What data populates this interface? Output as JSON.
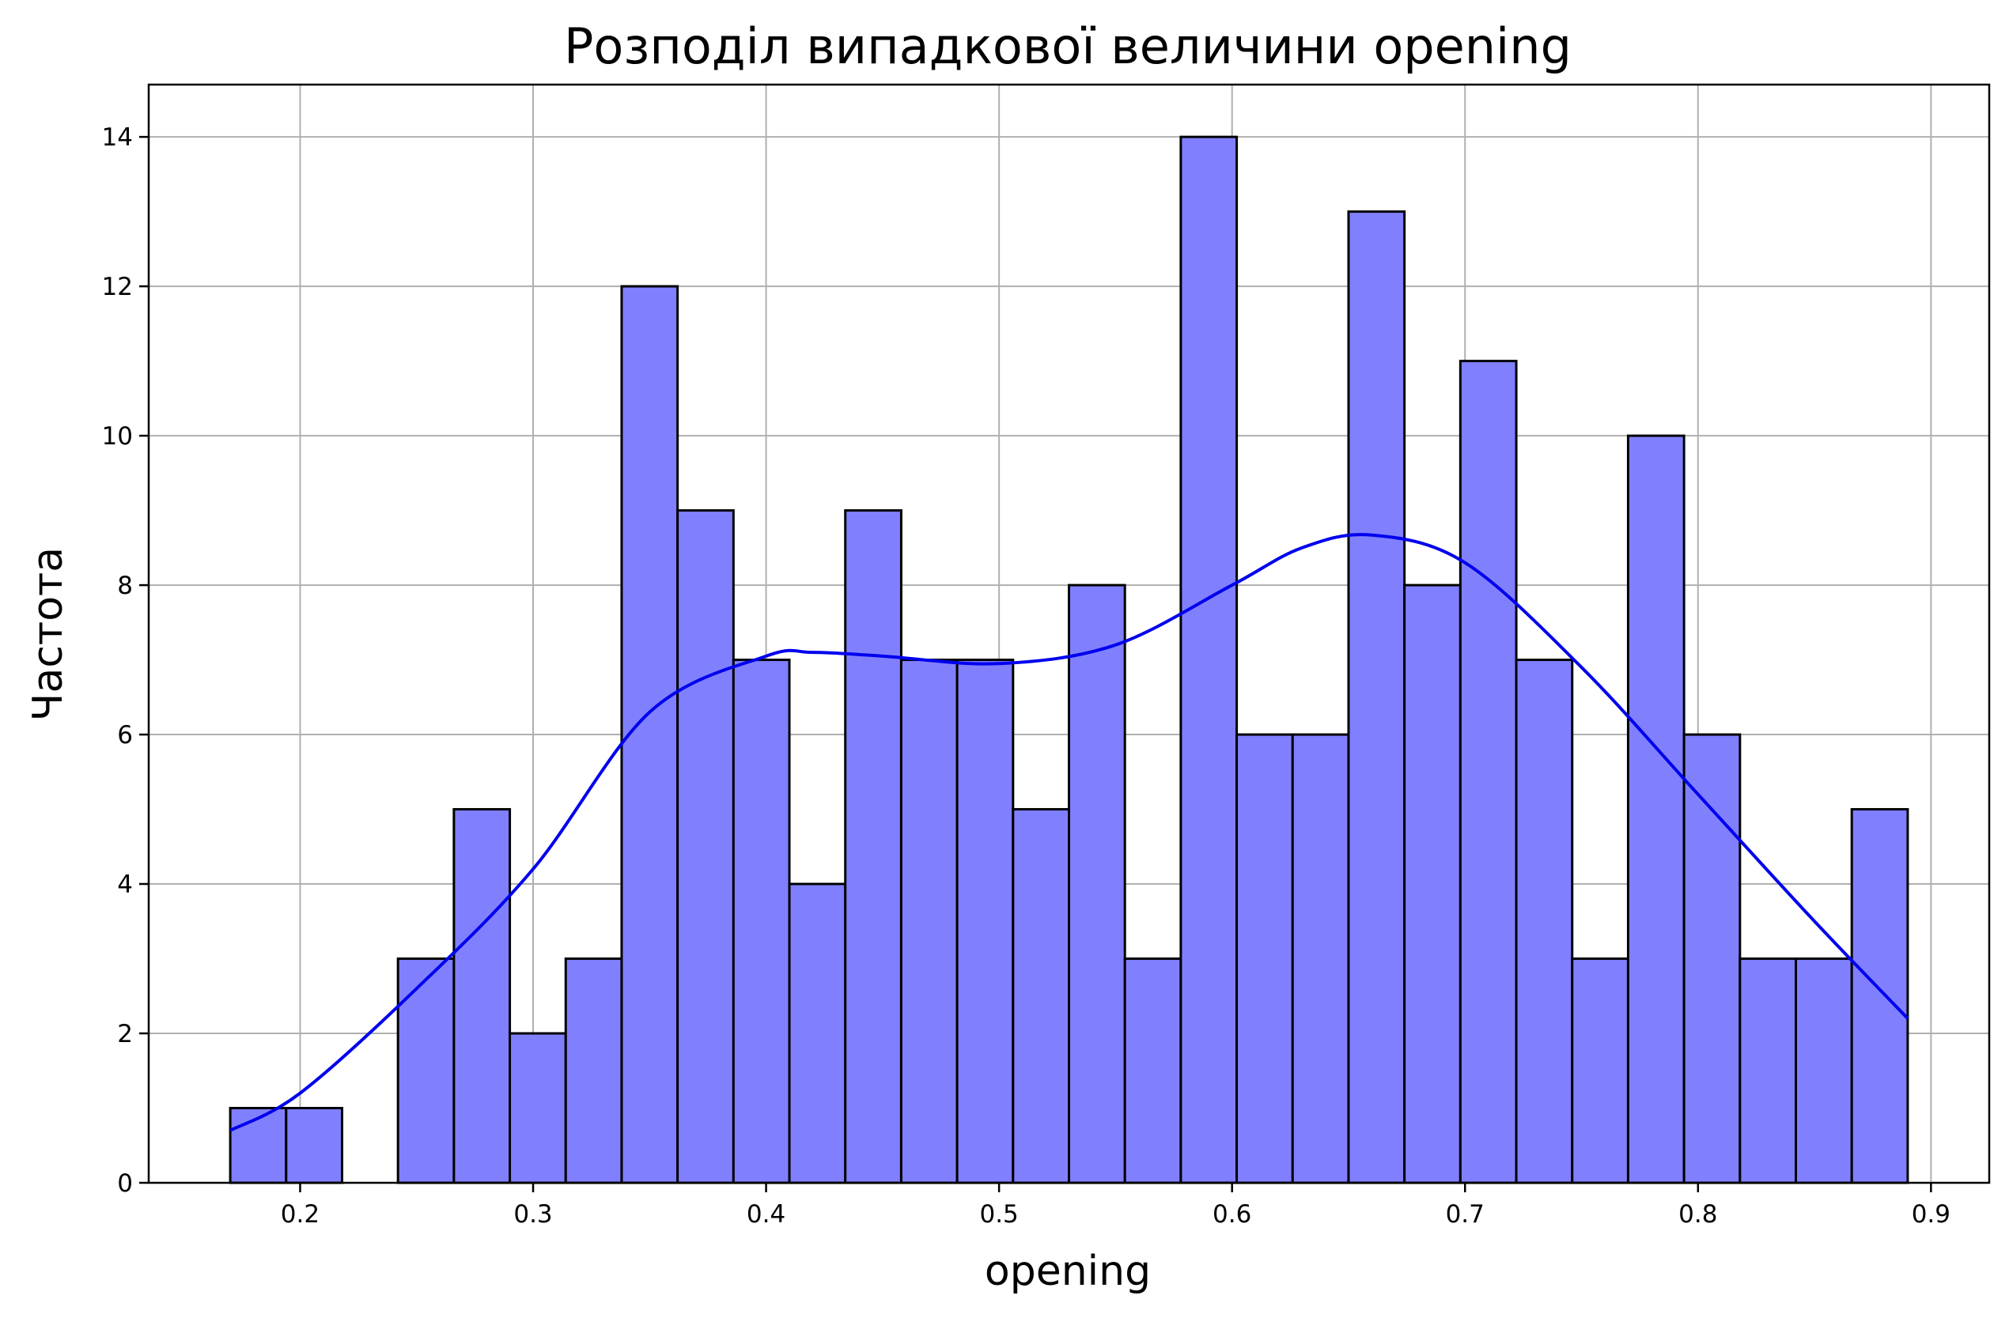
{
  "chart_data": {
    "type": "bar",
    "title": "Розподіл випадкової величини opening",
    "xlabel": "opening",
    "ylabel": "Частота",
    "xlim": [
      0.135,
      0.925
    ],
    "ylim": [
      0,
      14.7
    ],
    "xticks": [
      0.2,
      0.3,
      0.4,
      0.5,
      0.6,
      0.7,
      0.8,
      0.9
    ],
    "xtick_labels": [
      "0.2",
      "0.3",
      "0.4",
      "0.5",
      "0.6",
      "0.7",
      "0.8",
      "0.9"
    ],
    "yticks": [
      0,
      2,
      4,
      6,
      8,
      10,
      12,
      14
    ],
    "ytick_labels": [
      "0",
      "2",
      "4",
      "6",
      "8",
      "10",
      "12",
      "14"
    ],
    "grid": true,
    "bin_start": 0.17,
    "bin_width": 0.024,
    "counts": [
      1,
      1,
      0,
      3,
      5,
      2,
      3,
      12,
      9,
      7,
      4,
      9,
      7,
      7,
      5,
      8,
      3,
      14,
      6,
      6,
      13,
      8,
      11,
      7,
      3,
      10,
      6,
      3,
      3,
      5
    ],
    "bar_color": "#8080ff",
    "bar_edge_color": "#000000",
    "kde": {
      "color": "#0000ee",
      "x": [
        0.17,
        0.2,
        0.25,
        0.3,
        0.35,
        0.4,
        0.42,
        0.45,
        0.5,
        0.55,
        0.6,
        0.63,
        0.66,
        0.7,
        0.75,
        0.8,
        0.85,
        0.89
      ],
      "y": [
        0.7,
        1.2,
        2.6,
        4.2,
        6.3,
        7.05,
        7.1,
        7.05,
        6.95,
        7.2,
        8.0,
        8.5,
        8.67,
        8.3,
        6.9,
        5.2,
        3.5,
        2.2
      ]
    }
  }
}
